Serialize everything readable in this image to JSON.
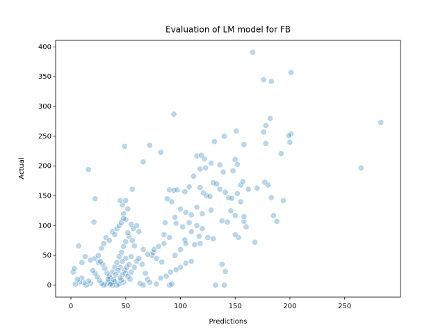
{
  "chart_data": {
    "type": "scatter",
    "title": "Evaluation of LM model for FB",
    "x_label": "Predictions",
    "y_label": "Actual",
    "color": "#1f77b4",
    "xlim": [
      -14,
      301
    ],
    "ylim": [
      -20,
      411
    ],
    "xticks": [
      0,
      50,
      100,
      150,
      200,
      250
    ],
    "yticks": [
      0,
      50,
      100,
      150,
      200,
      250,
      300,
      350,
      400
    ],
    "x": [
      166,
      201,
      176,
      183,
      94,
      283,
      265,
      182,
      178,
      201,
      199,
      176,
      178,
      192,
      200,
      151,
      158,
      140,
      131,
      49,
      72,
      82,
      16,
      22,
      21,
      7,
      56,
      66,
      115,
      119,
      122,
      128,
      118,
      123,
      136,
      139,
      150,
      152,
      148,
      155,
      157,
      162,
      170,
      177,
      180,
      183,
      185,
      188,
      194,
      168,
      160,
      158,
      158,
      146,
      150,
      143,
      138,
      128,
      120,
      115,
      110,
      105,
      100,
      95,
      92,
      88,
      90,
      94,
      97,
      104,
      108,
      112,
      118,
      121,
      124,
      127,
      130,
      133,
      136,
      141,
      144,
      147,
      152,
      155,
      153,
      150,
      130,
      125,
      117,
      118,
      113,
      104,
      110,
      105,
      100,
      96,
      91,
      87,
      82,
      78,
      83,
      78,
      74,
      70,
      66,
      62,
      60,
      57,
      55,
      53,
      50,
      48,
      47,
      45,
      50,
      52,
      56,
      58,
      50,
      48,
      46,
      44,
      42,
      40,
      38,
      36,
      34,
      32,
      30,
      28,
      26,
      24,
      22,
      20,
      18,
      16,
      14,
      12,
      10,
      8,
      6,
      4,
      2,
      3,
      10,
      13,
      18,
      22,
      25,
      28,
      30,
      32,
      35,
      38,
      40,
      42,
      44,
      46,
      48,
      52,
      55,
      50,
      47,
      45,
      43,
      41,
      39,
      37,
      35,
      33,
      31,
      29,
      27,
      25,
      50,
      52,
      54,
      48,
      46,
      44,
      42,
      40,
      38,
      36,
      34,
      49,
      51,
      53,
      47,
      45,
      55,
      58,
      60,
      62,
      65,
      68,
      70,
      72,
      75,
      80,
      85,
      90,
      95,
      100,
      105,
      110,
      115,
      120,
      63,
      66,
      90,
      132,
      140,
      141,
      138,
      92,
      85,
      76,
      86,
      96,
      102,
      108
    ],
    "y": [
      391,
      357,
      345,
      342,
      287,
      273,
      197,
      280,
      268,
      254,
      251,
      257,
      238,
      221,
      240,
      259,
      236,
      250,
      241,
      233,
      235,
      223,
      194,
      145,
      106,
      66,
      161,
      207,
      217,
      218,
      212,
      205,
      195,
      197,
      202,
      190,
      211,
      203,
      192,
      168,
      174,
      161,
      163,
      173,
      168,
      147,
      117,
      107,
      142,
      72,
      98,
      107,
      115,
      125,
      117,
      106,
      108,
      126,
      120,
      131,
      118,
      122,
      128,
      114,
      140,
      145,
      160,
      159,
      160,
      157,
      165,
      183,
      164,
      155,
      150,
      149,
      172,
      170,
      161,
      156,
      147,
      146,
      154,
      140,
      80,
      85,
      78,
      80,
      82,
      70,
      68,
      76,
      40,
      37,
      30,
      26,
      22,
      15,
      12,
      2,
      39,
      45,
      50,
      52,
      60,
      90,
      100,
      95,
      102,
      82,
      110,
      120,
      135,
      142,
      142,
      88,
      75,
      66,
      73,
      65,
      55,
      48,
      38,
      30,
      22,
      12,
      5,
      2,
      0,
      3,
      8,
      14,
      20,
      25,
      3,
      7,
      0,
      4,
      12,
      5,
      10,
      2,
      22,
      28,
      38,
      48,
      42,
      45,
      38,
      62,
      70,
      80,
      75,
      90,
      85,
      95,
      100,
      105,
      112,
      128,
      48,
      45,
      40,
      30,
      25,
      18,
      10,
      5,
      15,
      20,
      28,
      35,
      40,
      50,
      20,
      15,
      10,
      5,
      8,
      2,
      0,
      6,
      0,
      2,
      10,
      25,
      30,
      35,
      18,
      12,
      22,
      30,
      40,
      45,
      35,
      20,
      10,
      5,
      55,
      65,
      70,
      80,
      50,
      60,
      70,
      90,
      100,
      95,
      3,
      0,
      0,
      0,
      0,
      23,
      35,
      2,
      85,
      60,
      105,
      104,
      98,
      105
    ]
  }
}
